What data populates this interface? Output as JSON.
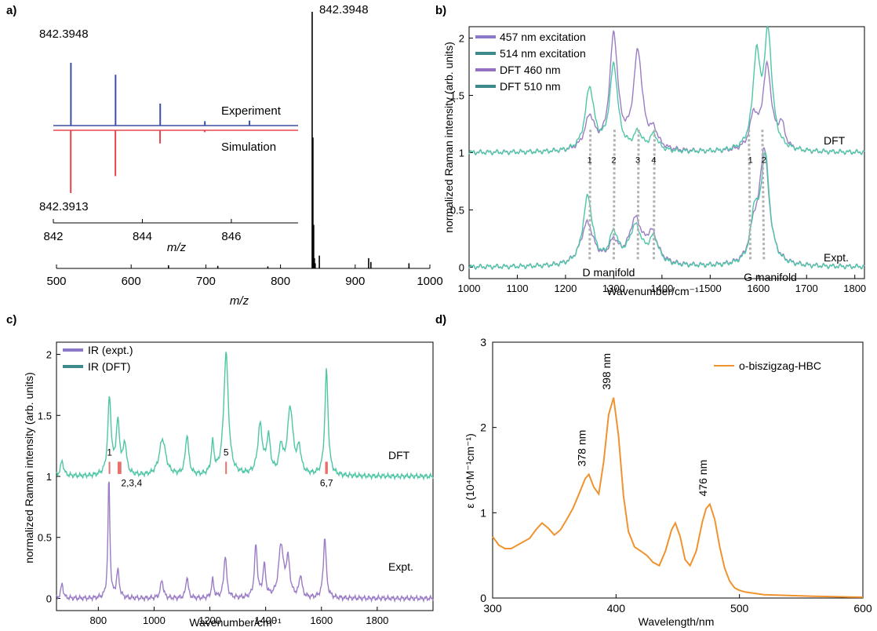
{
  "chart_data": [
    {
      "panel": "a)",
      "type": "bar",
      "xlabel": "m/z",
      "xlim": [
        500,
        1000
      ],
      "xticks": [
        500,
        600,
        700,
        800,
        900,
        1000
      ],
      "peak_label": "842.3948",
      "peaks": [
        {
          "x": 842.4,
          "y": 1.0
        },
        {
          "x": 843.4,
          "y": 0.51
        },
        {
          "x": 844.4,
          "y": 0.17
        },
        {
          "x": 845.4,
          "y": 0.04
        },
        {
          "x": 846.4,
          "y": 0.02
        },
        {
          "x": 650,
          "y": 0.012
        },
        {
          "x": 716,
          "y": 0.01
        },
        {
          "x": 783,
          "y": 0.008
        },
        {
          "x": 852,
          "y": 0.05
        },
        {
          "x": 918,
          "y": 0.04
        },
        {
          "x": 921,
          "y": 0.025
        },
        {
          "x": 972,
          "y": 0.02
        }
      ],
      "inset": {
        "type": "line",
        "xlabel": "m/z",
        "xlim": [
          842,
          847.5
        ],
        "xticks": [
          842,
          844,
          846
        ],
        "series": [
          {
            "name": "Experiment",
            "color": "#3a4fa5",
            "x": [
              842.3948,
              843.3981,
              844.4015,
              845.405,
              846.408
            ],
            "values": [
              1.0,
              0.81,
              0.35,
              0.07,
              0.08
            ]
          },
          {
            "name": "Simulation",
            "color": "#e8464b",
            "x": [
              842.3913,
              843.3946,
              844.398,
              845.401,
              846.404
            ],
            "values": [
              1.0,
              0.73,
              0.21,
              0.03,
              0.004
            ]
          }
        ],
        "labels": {
          "top": "842.3948",
          "bottom": "842.3913"
        }
      }
    },
    {
      "panel": "b)",
      "type": "line",
      "xlabel": "Wavenumber/cm⁻¹",
      "ylabel": "normalized Raman intensity (arb. units)",
      "xlim": [
        1000,
        1820
      ],
      "ylim": [
        -0.1,
        2.1
      ],
      "xticks": [
        1000,
        1100,
        1200,
        1300,
        1400,
        1500,
        1600,
        1700,
        1800
      ],
      "yticks": [
        "0",
        "0.5",
        "1",
        "1.5",
        "2"
      ],
      "legend": [
        "457 nm excitation",
        "514 nm excitation",
        "DFT 460 nm",
        "DFT 510 nm"
      ],
      "legend_colors": [
        "#8b78c8",
        "#3e8a8a",
        "#9370c0",
        "#3e8a8a"
      ],
      "series": [
        {
          "name": "DFT 460 nm",
          "color": "#9b7cc6",
          "offset": 1,
          "peaks": [
            [
              1250,
              0.29,
              12
            ],
            [
              1300,
              1.0,
              10
            ],
            [
              1350,
              0.85,
              11
            ],
            [
              1383,
              0.14,
              10
            ],
            [
              1590,
              0.28,
              9
            ],
            [
              1618,
              0.73,
              11
            ],
            [
              1648,
              0.2,
              8
            ]
          ]
        },
        {
          "name": "DFT 510 nm",
          "color": "#4fc6a6",
          "offset": 1,
          "peaks": [
            [
              1250,
              0.55,
              11
            ],
            [
              1300,
              0.75,
              10
            ],
            [
              1350,
              0.15,
              10
            ],
            [
              1383,
              0.14,
              10
            ],
            [
              1596,
              0.78,
              9
            ],
            [
              1620,
              1.0,
              10
            ]
          ]
        },
        {
          "name": "457 nm excitation",
          "color": "#9b7cc6",
          "offset": 0,
          "peaks": [
            [
              1245,
              0.37,
              16
            ],
            [
              1300,
              0.18,
              12
            ],
            [
              1345,
              0.38,
              16
            ],
            [
              1380,
              0.25,
              14
            ],
            [
              1590,
              0.25,
              10
            ],
            [
              1612,
              1.0,
              12
            ]
          ]
        },
        {
          "name": "514 nm excitation",
          "color": "#4fc6a6",
          "offset": 0,
          "peaks": [
            [
              1246,
              0.6,
              12
            ],
            [
              1300,
              0.26,
              11
            ],
            [
              1345,
              0.33,
              16
            ],
            [
              1383,
              0.22,
              12
            ],
            [
              1592,
              0.4,
              9
            ],
            [
              1614,
              0.95,
              11
            ]
          ]
        }
      ],
      "annotations": {
        "dft": "DFT",
        "expt": "Expt.",
        "d_manifold": "D manifold",
        "g_manifold": "G manifold",
        "mode_labels": [
          "1",
          "2",
          "3",
          "4",
          "1",
          "2"
        ],
        "mode_positions": [
          1250,
          1300,
          1350,
          1383,
          1590,
          1618
        ]
      }
    },
    {
      "panel": "c)",
      "type": "line",
      "xlabel": "Wavenumber/cm⁻¹",
      "ylabel": "normalized Raman intensity (arb. units)",
      "xlim": [
        650,
        2000
      ],
      "ylim": [
        -0.1,
        2.1
      ],
      "xticks": [
        800,
        1000,
        1200,
        1400,
        1600,
        1800
      ],
      "yticks": [
        "0",
        "0.5",
        "1",
        "1.5",
        "2"
      ],
      "legend": [
        "IR (expt.)",
        "IR (DFT)"
      ],
      "legend_colors": [
        "#8b78c8",
        "#3e8a8a"
      ],
      "series": [
        {
          "name": "IR (DFT)",
          "color": "#4fc6a6",
          "offset": 1,
          "peaks": [
            [
              670,
              0.12,
              7
            ],
            [
              840,
              0.63,
              7
            ],
            [
              870,
              0.42,
              8
            ],
            [
              895,
              0.25,
              7
            ],
            [
              1030,
              0.3,
              14
            ],
            [
              1118,
              0.33,
              7
            ],
            [
              1210,
              0.25,
              6
            ],
            [
              1258,
              1.0,
              10
            ],
            [
              1380,
              0.4,
              10
            ],
            [
              1410,
              0.3,
              8
            ],
            [
              1455,
              0.22,
              7
            ],
            [
              1488,
              0.55,
              12
            ],
            [
              1520,
              0.2,
              8
            ],
            [
              1618,
              0.86,
              7
            ]
          ]
        },
        {
          "name": "IR (expt.)",
          "color": "#9b7cc6",
          "offset": 0,
          "peaks": [
            [
              670,
              0.12,
              5
            ],
            [
              838,
              1.0,
              4
            ],
            [
              870,
              0.22,
              6
            ],
            [
              1028,
              0.15,
              6
            ],
            [
              1118,
              0.18,
              5
            ],
            [
              1210,
              0.15,
              5
            ],
            [
              1255,
              0.35,
              6
            ],
            [
              1365,
              0.43,
              6
            ],
            [
              1395,
              0.26,
              6
            ],
            [
              1455,
              0.43,
              10
            ],
            [
              1480,
              0.3,
              8
            ],
            [
              1525,
              0.18,
              6
            ],
            [
              1612,
              0.5,
              6
            ]
          ]
        }
      ],
      "annotations": {
        "dft": "DFT",
        "expt": "Expt.",
        "mode_labels": [
          "1",
          "2,3,4",
          "5",
          "6,7"
        ],
        "mode_positions": [
          840,
          880,
          1258,
          1618
        ]
      }
    },
    {
      "panel": "d)",
      "type": "line",
      "xlabel": "Wavelength/nm",
      "ylabel": "ε (10⁴M⁻¹cm⁻¹)",
      "xlim": [
        300,
        600
      ],
      "ylim": [
        0,
        3
      ],
      "xticks": [
        300,
        400,
        500,
        600
      ],
      "yticks": [
        0,
        1,
        2,
        3
      ],
      "legend": [
        "o-biszigzag-HBC"
      ],
      "color": "#f0932e",
      "x": [
        300,
        305,
        310,
        315,
        320,
        325,
        330,
        335,
        340,
        345,
        350,
        355,
        360,
        365,
        370,
        375,
        378,
        382,
        386,
        390,
        394,
        398,
        402,
        406,
        410,
        415,
        420,
        425,
        430,
        435,
        440,
        445,
        448,
        452,
        456,
        460,
        465,
        470,
        473,
        476,
        480,
        484,
        488,
        492,
        496,
        500,
        505,
        510,
        520,
        530,
        540,
        550,
        560,
        570,
        580,
        590,
        600
      ],
      "values": [
        0.72,
        0.62,
        0.58,
        0.58,
        0.62,
        0.66,
        0.7,
        0.8,
        0.88,
        0.82,
        0.74,
        0.8,
        0.92,
        1.05,
        1.22,
        1.4,
        1.45,
        1.3,
        1.22,
        1.6,
        2.15,
        2.35,
        1.9,
        1.2,
        0.78,
        0.6,
        0.55,
        0.5,
        0.42,
        0.38,
        0.55,
        0.8,
        0.88,
        0.72,
        0.45,
        0.38,
        0.55,
        0.9,
        1.05,
        1.1,
        0.92,
        0.6,
        0.35,
        0.2,
        0.12,
        0.09,
        0.07,
        0.06,
        0.04,
        0.035,
        0.03,
        0.025,
        0.02,
        0.018,
        0.015,
        0.012,
        0.01
      ],
      "annotations": [
        {
          "text": "378 nm",
          "x": 378
        },
        {
          "text": "398 nm",
          "x": 398
        },
        {
          "text": "476 nm",
          "x": 476
        }
      ]
    }
  ]
}
